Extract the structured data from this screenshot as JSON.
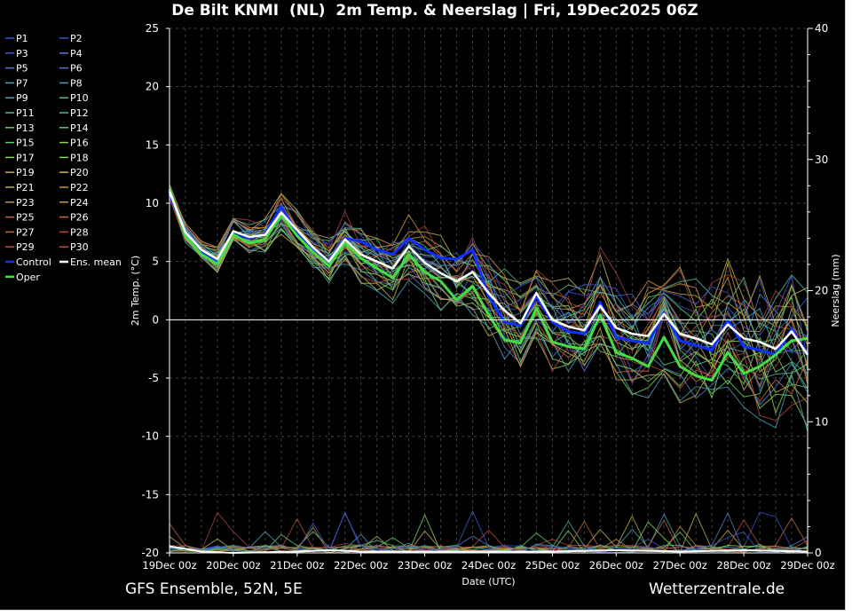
{
  "chart_data": {
    "type": "line",
    "title": "De Bilt KNMI  (NL)  2m Temp. & Neerslag | Fri, 19Dec2025 06Z",
    "ylabel": "2m Temp. (°C)",
    "ylabel_right": "Neerslag (mm)",
    "xlabel": "Date (UTC)",
    "ylim": [
      -20,
      25
    ],
    "y2lim": [
      0,
      40
    ],
    "yticks": [
      25,
      20,
      15,
      10,
      5,
      0,
      -5,
      -10,
      -15,
      -20
    ],
    "y2ticks": [
      40,
      30,
      20,
      10,
      0
    ],
    "xlim_days": [
      19,
      29
    ],
    "xticks": [
      "19Dec 00z",
      "20Dec 00z",
      "21Dec 00z",
      "22Dec 00z",
      "23Dec 00z",
      "24Dec 00z",
      "25Dec 00z",
      "26Dec 00z",
      "27Dec 00z",
      "28Dec 00z",
      "29Dec 00z"
    ],
    "grid": true,
    "legend_position": "left",
    "footer_left": "GFS Ensemble, 52N, 5E",
    "footer_right": "Wetterzentrale.de",
    "ens_mean": {
      "x": [
        19.0,
        19.25,
        19.5,
        19.75,
        20.0,
        20.25,
        20.5,
        20.75,
        21.0,
        21.25,
        21.5,
        21.75,
        22.0,
        22.25,
        22.5,
        22.75,
        23.0,
        23.25,
        23.5,
        23.75,
        24.0,
        24.25,
        24.5,
        24.75,
        25.0,
        25.25,
        25.5,
        25.75,
        26.0,
        26.25,
        26.5,
        26.75,
        27.0,
        27.25,
        27.5,
        27.75,
        28.0,
        28.25,
        28.5,
        28.75,
        29.0
      ],
      "y": [
        11.0,
        7.5,
        6.0,
        5.2,
        7.6,
        7.1,
        7.3,
        9.2,
        7.7,
        6.2,
        5.0,
        6.9,
        5.6,
        5.0,
        4.4,
        6.3,
        4.9,
        4.0,
        3.3,
        4.1,
        2.3,
        0.8,
        -0.3,
        2.3,
        0.0,
        -0.6,
        -0.9,
        1.2,
        -0.7,
        -1.2,
        -1.4,
        0.5,
        -1.2,
        -1.6,
        -2.1,
        -0.4,
        -1.6,
        -1.9,
        -2.5,
        -1.0,
        -3.0
      ]
    },
    "control": {
      "x": [
        19.0,
        19.25,
        19.5,
        19.75,
        20.0,
        20.25,
        20.5,
        20.75,
        21.0,
        21.25,
        21.5,
        21.75,
        22.0,
        22.25,
        22.5,
        22.75,
        23.0,
        23.25,
        23.5,
        23.75,
        24.0,
        24.25,
        24.5,
        24.75,
        25.0,
        25.25,
        25.5,
        25.75,
        26.0,
        26.25,
        26.5,
        26.75,
        27.0,
        27.25,
        27.5,
        27.75,
        28.0,
        28.25,
        28.5,
        28.75,
        29.0
      ],
      "y": [
        10.8,
        7.5,
        5.9,
        5.0,
        7.5,
        7.0,
        7.4,
        9.7,
        7.5,
        6.1,
        5.0,
        7.0,
        6.7,
        6.0,
        5.6,
        7.0,
        6.0,
        5.3,
        5.2,
        6.0,
        2.0,
        -0.2,
        -0.5,
        2.0,
        -0.2,
        -1.0,
        -1.2,
        1.5,
        -1.5,
        -1.8,
        -2.0,
        0.6,
        -1.8,
        -2.2,
        -2.6,
        0.0,
        -2.3,
        -2.6,
        -3.0,
        -0.8,
        -3.0
      ]
    },
    "oper": {
      "x": [
        19.0,
        19.25,
        19.5,
        19.75,
        20.0,
        20.25,
        20.5,
        20.75,
        21.0,
        21.25,
        21.5,
        21.75,
        22.0,
        22.25,
        22.5,
        22.75,
        23.0,
        23.25,
        23.5,
        23.75,
        24.0,
        24.25,
        24.5,
        24.75,
        25.0,
        25.25,
        25.5,
        25.75,
        26.0,
        26.25,
        26.5,
        26.75,
        27.0,
        27.25,
        27.5,
        27.75,
        28.0,
        28.25,
        28.5,
        28.75,
        29.0
      ],
      "y": [
        11.2,
        7.2,
        5.6,
        4.8,
        7.3,
        6.6,
        6.9,
        9.0,
        7.2,
        5.8,
        4.6,
        6.6,
        5.3,
        4.4,
        3.6,
        5.6,
        4.1,
        3.3,
        1.7,
        2.9,
        0.4,
        -1.7,
        -2.0,
        1.0,
        -1.9,
        -2.3,
        -2.5,
        0.4,
        -2.8,
        -3.3,
        -4.0,
        -1.5,
        -4.0,
        -4.8,
        -5.2,
        -2.8,
        -4.6,
        -4.0,
        -3.0,
        -1.8,
        -1.6
      ]
    },
    "precip_ens_mean": {
      "x": [
        19.0,
        19.5,
        20.0,
        21.0,
        21.5,
        22.0,
        23.0,
        24.0,
        25.0,
        26.0,
        27.0,
        28.0,
        29.0
      ],
      "y": [
        0.5,
        0.1,
        0.0,
        0.1,
        0.2,
        0.1,
        0.1,
        0.1,
        0.1,
        0.2,
        0.1,
        0.2,
        0.1
      ]
    },
    "series_names": [
      "P1",
      "P2",
      "P3",
      "P4",
      "P5",
      "P6",
      "P7",
      "P8",
      "P9",
      "P10",
      "P11",
      "P12",
      "P13",
      "P14",
      "P15",
      "P16",
      "P17",
      "P18",
      "P19",
      "P20",
      "P21",
      "P22",
      "P23",
      "P24",
      "P25",
      "P26",
      "P27",
      "P28",
      "P29",
      "P30",
      "Control",
      "Ens. mean",
      "Oper"
    ],
    "colors": {
      "background": "#000000",
      "text": "#ffffff",
      "grid": "#444444",
      "control": "#1030ff",
      "ens_mean": "#ffffff",
      "oper": "#44dd44",
      "zero_line": "#ffffff",
      "palette": [
        "#3a59c8",
        "#4d7fd0",
        "#4aa0b8",
        "#55b890",
        "#5fcf6a",
        "#86d45b",
        "#bfae50",
        "#c9943f",
        "#c2683c",
        "#b84a3a",
        "#a64040"
      ]
    }
  }
}
